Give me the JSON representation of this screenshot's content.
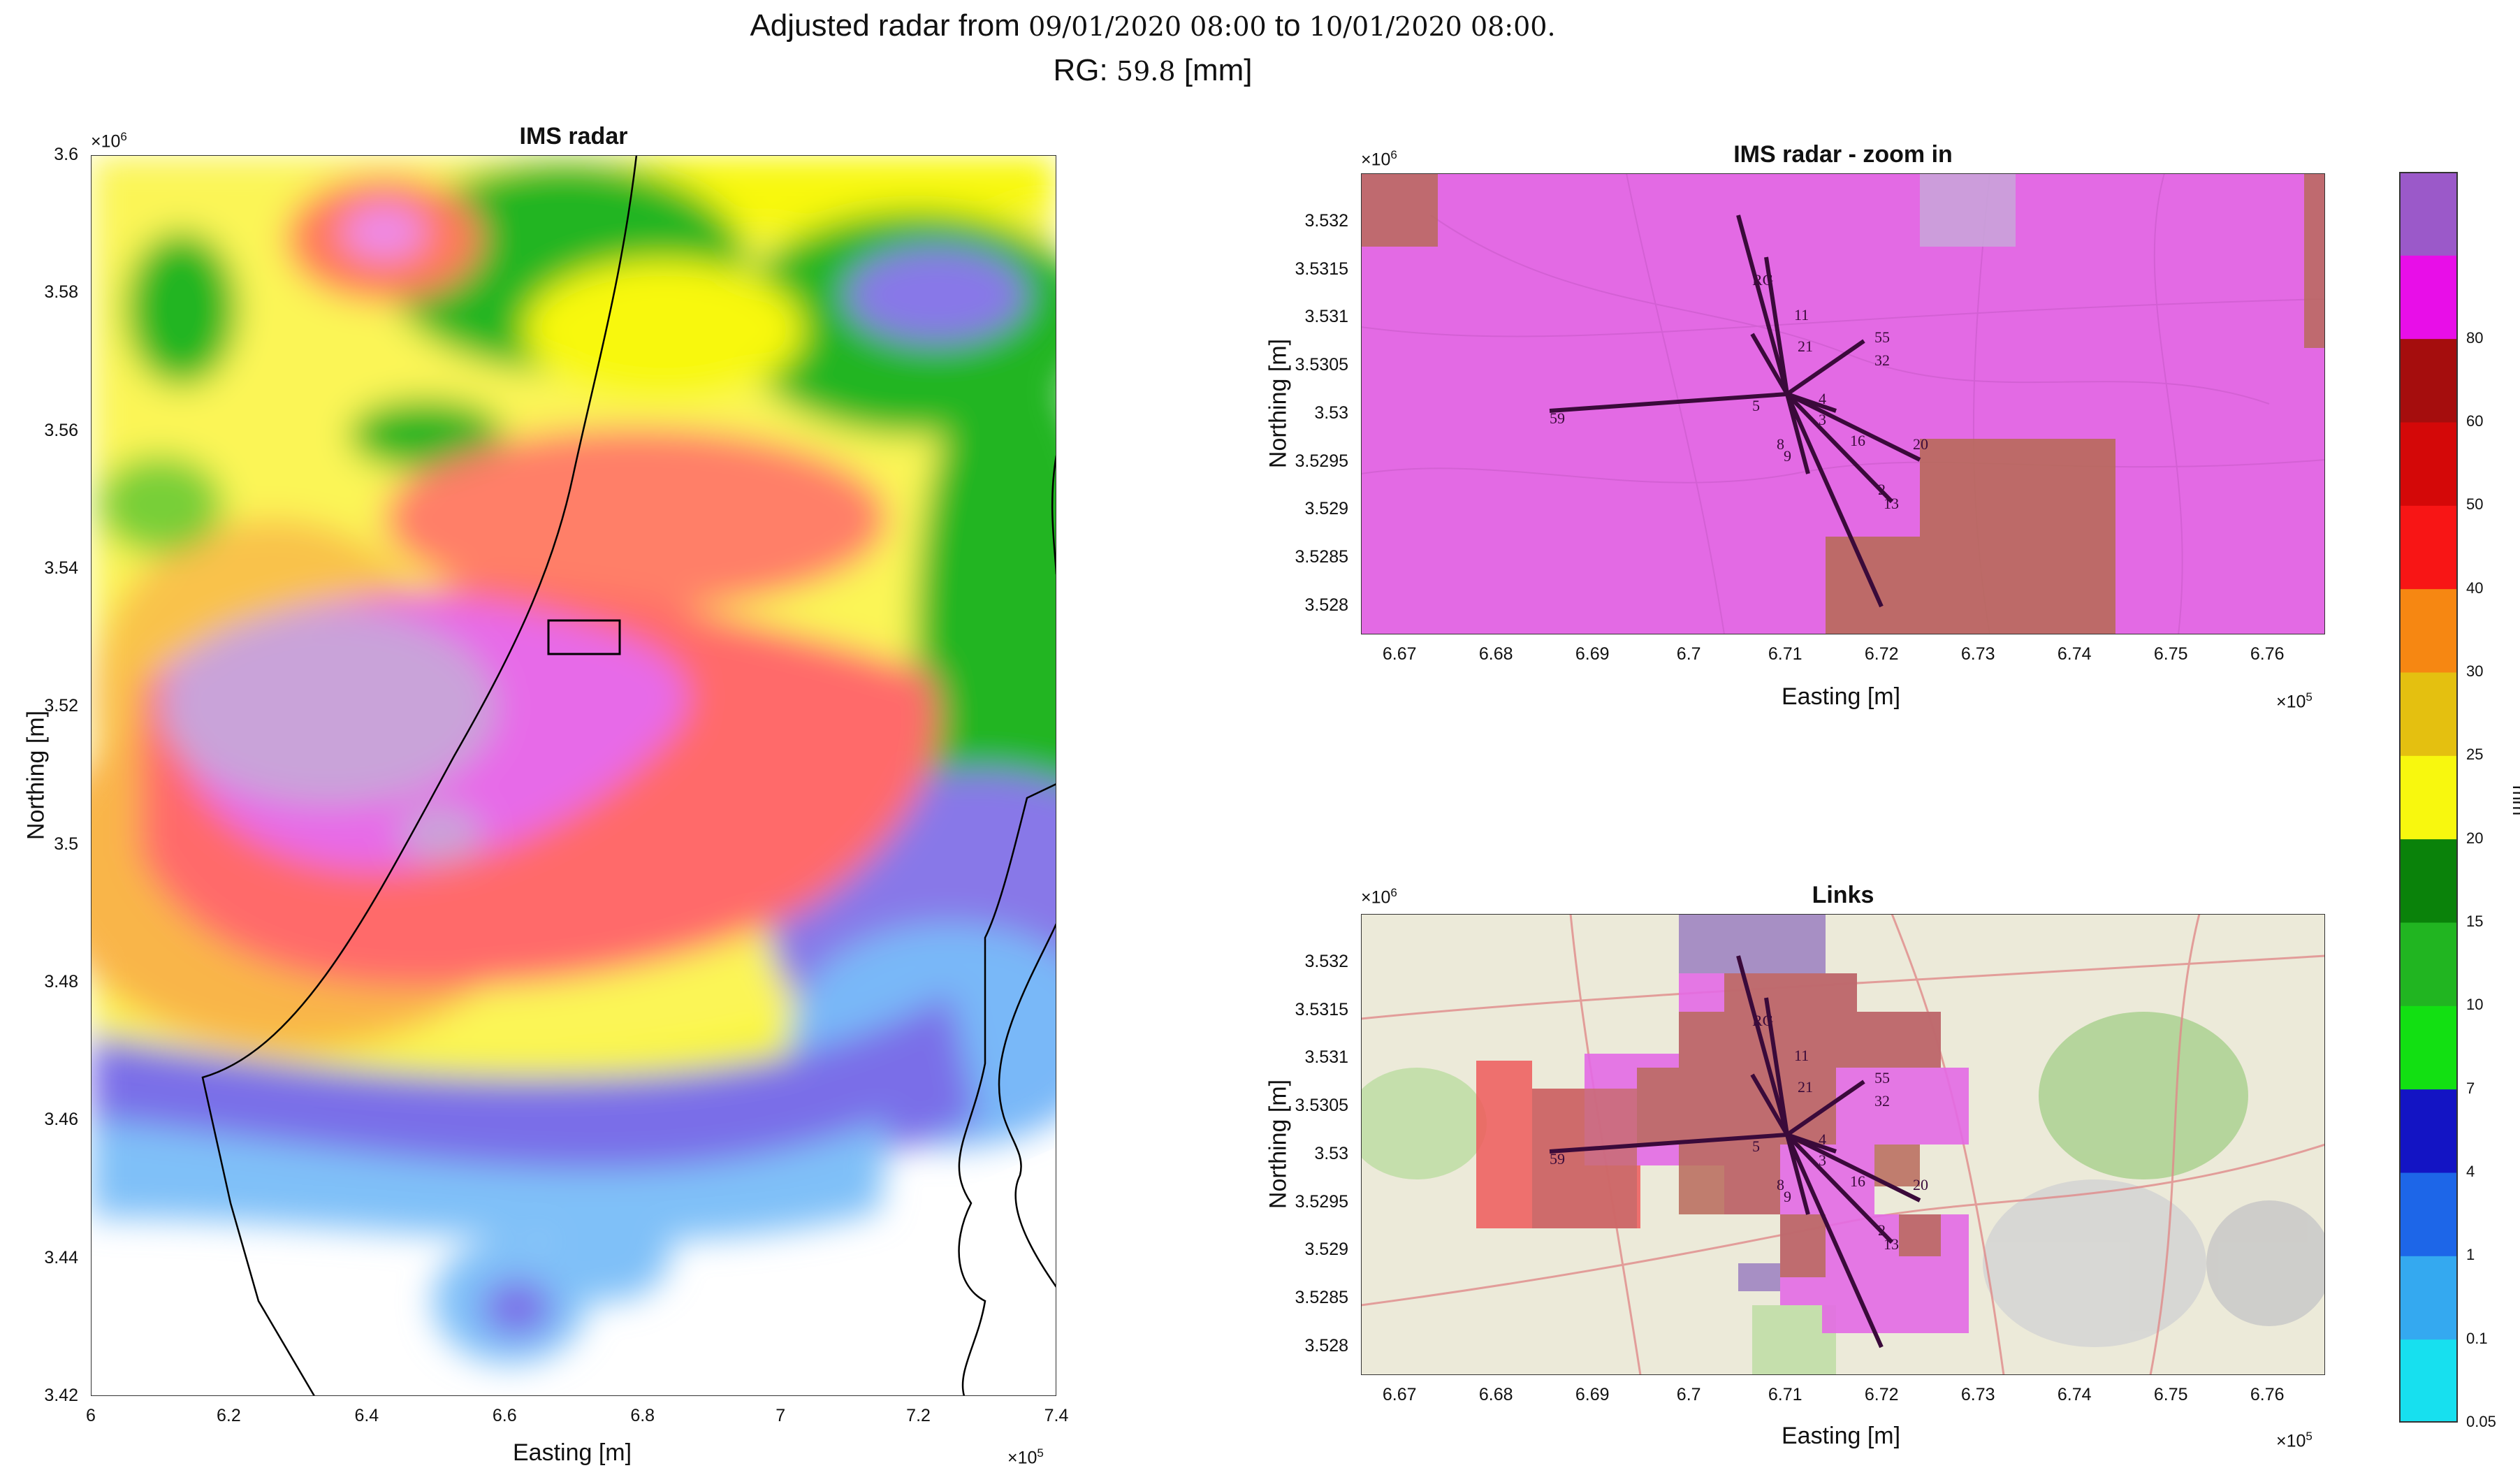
{
  "title": {
    "line1_a": "Adjusted radar from ",
    "line1_date1": "09/01/2020 08:00",
    "line1_b": " to ",
    "line1_date2": "10/01/2020 08:00.",
    "line2_a": "RG: ",
    "line2_value": "59.8",
    "line2_unit": " [mm]"
  },
  "colors": {
    "bg_gray": "#d6d4d3",
    "bg_map": "#ecead9",
    "border_line": "#000000",
    "link_line": "#3a0a3a"
  },
  "chart_data": [
    {
      "type": "heatmap",
      "title": "IMS radar",
      "xlabel": "Easting [m]",
      "ylabel": "Northing [m]",
      "x_exponent": "×10",
      "x_exponent_power": "5",
      "y_exponent": "×10",
      "y_exponent_power": "6",
      "xlim": [
        6.0,
        7.4
      ],
      "ylim": [
        3.42,
        3.6
      ],
      "xticks": [
        "6",
        "6.2",
        "6.4",
        "6.6",
        "6.8",
        "7",
        "7.2",
        "7.4"
      ],
      "yticks": [
        "3.6",
        "3.58",
        "3.56",
        "3.54",
        "3.52",
        "3.5",
        "3.48",
        "3.46",
        "3.44",
        "3.42"
      ],
      "zoom_box": {
        "x": [
          6.67,
          6.77
        ],
        "y": [
          3.528,
          3.533
        ]
      }
    },
    {
      "type": "heatmap",
      "title": "IMS radar - zoom in",
      "xlabel": "Easting [m]",
      "ylabel": "Northing [m]",
      "x_exponent": "×10",
      "x_exponent_power": "5",
      "y_exponent": "×10",
      "y_exponent_power": "6",
      "xlim": [
        6.666,
        6.766
      ],
      "ylim": [
        3.5277,
        3.5325
      ],
      "xticks": [
        "6.67",
        "6.68",
        "6.69",
        "6.7",
        "6.71",
        "6.72",
        "6.73",
        "6.74",
        "6.75",
        "6.76"
      ],
      "yticks": [
        "3.532",
        "3.5315",
        "3.531",
        "3.5305",
        "3.53",
        "3.5295",
        "3.529",
        "3.5285",
        "3.528"
      ],
      "link_labels": [
        "RG",
        "11",
        "21",
        "32",
        "55",
        "59",
        "3",
        "4",
        "16",
        "20",
        "2",
        "13",
        "8",
        "9",
        "5"
      ]
    },
    {
      "type": "heatmap",
      "title": "Links",
      "xlabel": "Easting [m]",
      "ylabel": "Northing [m]",
      "x_exponent": "×10",
      "x_exponent_power": "5",
      "y_exponent": "×10",
      "y_exponent_power": "6",
      "xlim": [
        6.666,
        6.766
      ],
      "ylim": [
        3.5277,
        3.5325
      ],
      "xticks": [
        "6.67",
        "6.68",
        "6.69",
        "6.7",
        "6.71",
        "6.72",
        "6.73",
        "6.74",
        "6.75",
        "6.76"
      ],
      "yticks": [
        "3.532",
        "3.5315",
        "3.531",
        "3.5305",
        "3.53",
        "3.5295",
        "3.529",
        "3.5285",
        "3.528"
      ],
      "link_labels": [
        "RG",
        "11",
        "21",
        "32",
        "55",
        "59",
        "3",
        "4",
        "16",
        "20",
        "2",
        "13",
        "8",
        "9",
        "5"
      ]
    }
  ],
  "colorbar": {
    "unit": "mm",
    "labels": [
      "0.05",
      "0.1",
      "1",
      "4",
      "7",
      "10",
      "15",
      "20",
      "25",
      "30",
      "40",
      "50",
      "60",
      "80"
    ],
    "colors": [
      "#17e0ef",
      "#34a9f0",
      "#1d66e8",
      "#1314c4",
      "#12e012",
      "#21b521",
      "#0a820a",
      "#f8f80e",
      "#e4c010",
      "#f68712",
      "#f81515",
      "#d40808",
      "#a50d0d",
      "#e80ee8",
      "#9b59c9"
    ]
  }
}
